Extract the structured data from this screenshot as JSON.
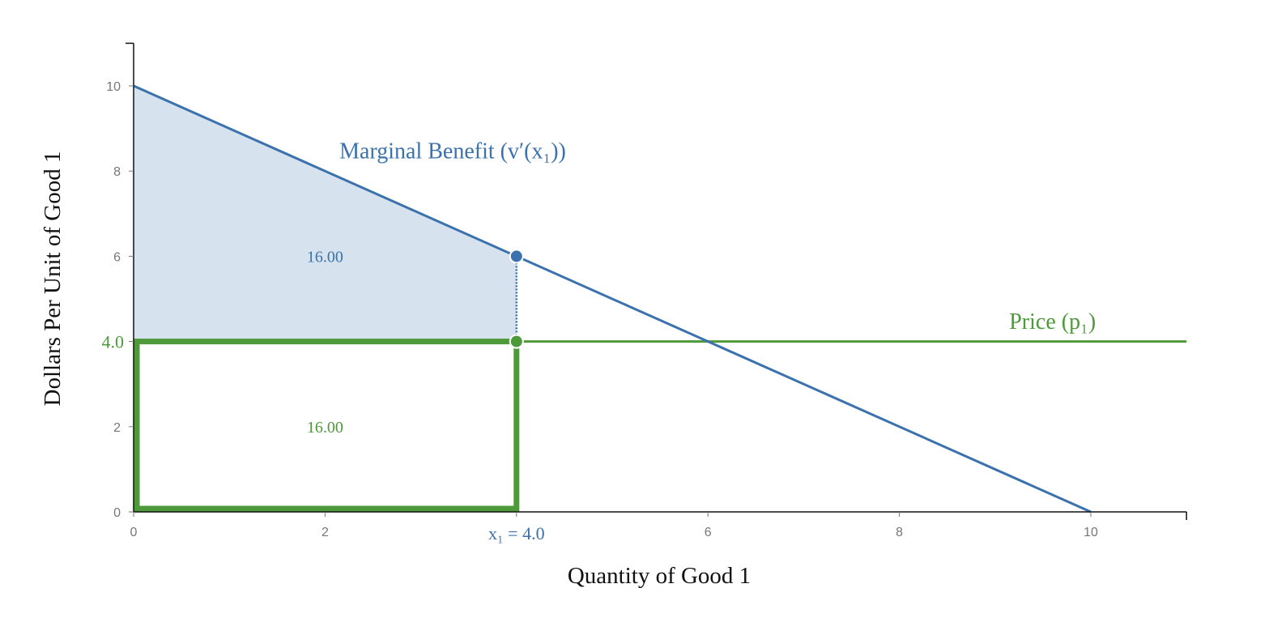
{
  "chart_data": {
    "type": "line",
    "xlabel": "Quantity of Good 1",
    "ylabel": "Dollars Per Unit of Good 1",
    "xlim": [
      0,
      11
    ],
    "ylim": [
      0,
      11
    ],
    "x_ticks": [
      0,
      2,
      4,
      6,
      8,
      10
    ],
    "y_ticks": [
      0,
      2,
      4,
      6,
      8,
      10
    ],
    "x_tick_labels": [
      "0",
      "2",
      "",
      "6",
      "8",
      "10"
    ],
    "y_tick_labels": [
      "0",
      "2",
      "",
      "6",
      "8",
      "10"
    ],
    "grid": false,
    "series": [
      {
        "name": "Marginal Benefit (v′(x₁))",
        "x": [
          0,
          10
        ],
        "y": [
          10,
          0
        ],
        "color": "#3b72ad"
      },
      {
        "name": "Price (p₁)",
        "x": [
          0,
          11
        ],
        "y": [
          4,
          4
        ],
        "color": "#4e9a3a"
      }
    ],
    "quantity": 4.0,
    "price": 4.0,
    "benefit_at_quantity": 6.0,
    "quantity_label": "x₁ = 4.0",
    "price_label": "4.0",
    "consumer_surplus_label": "16.00",
    "expenditure_label": "16.00",
    "colors": {
      "benefit": "#3b72ad",
      "price": "#4e9a3a",
      "surplus_fill": "#d6e3ef",
      "axis": "#111111",
      "tick_text": "#777777"
    }
  }
}
